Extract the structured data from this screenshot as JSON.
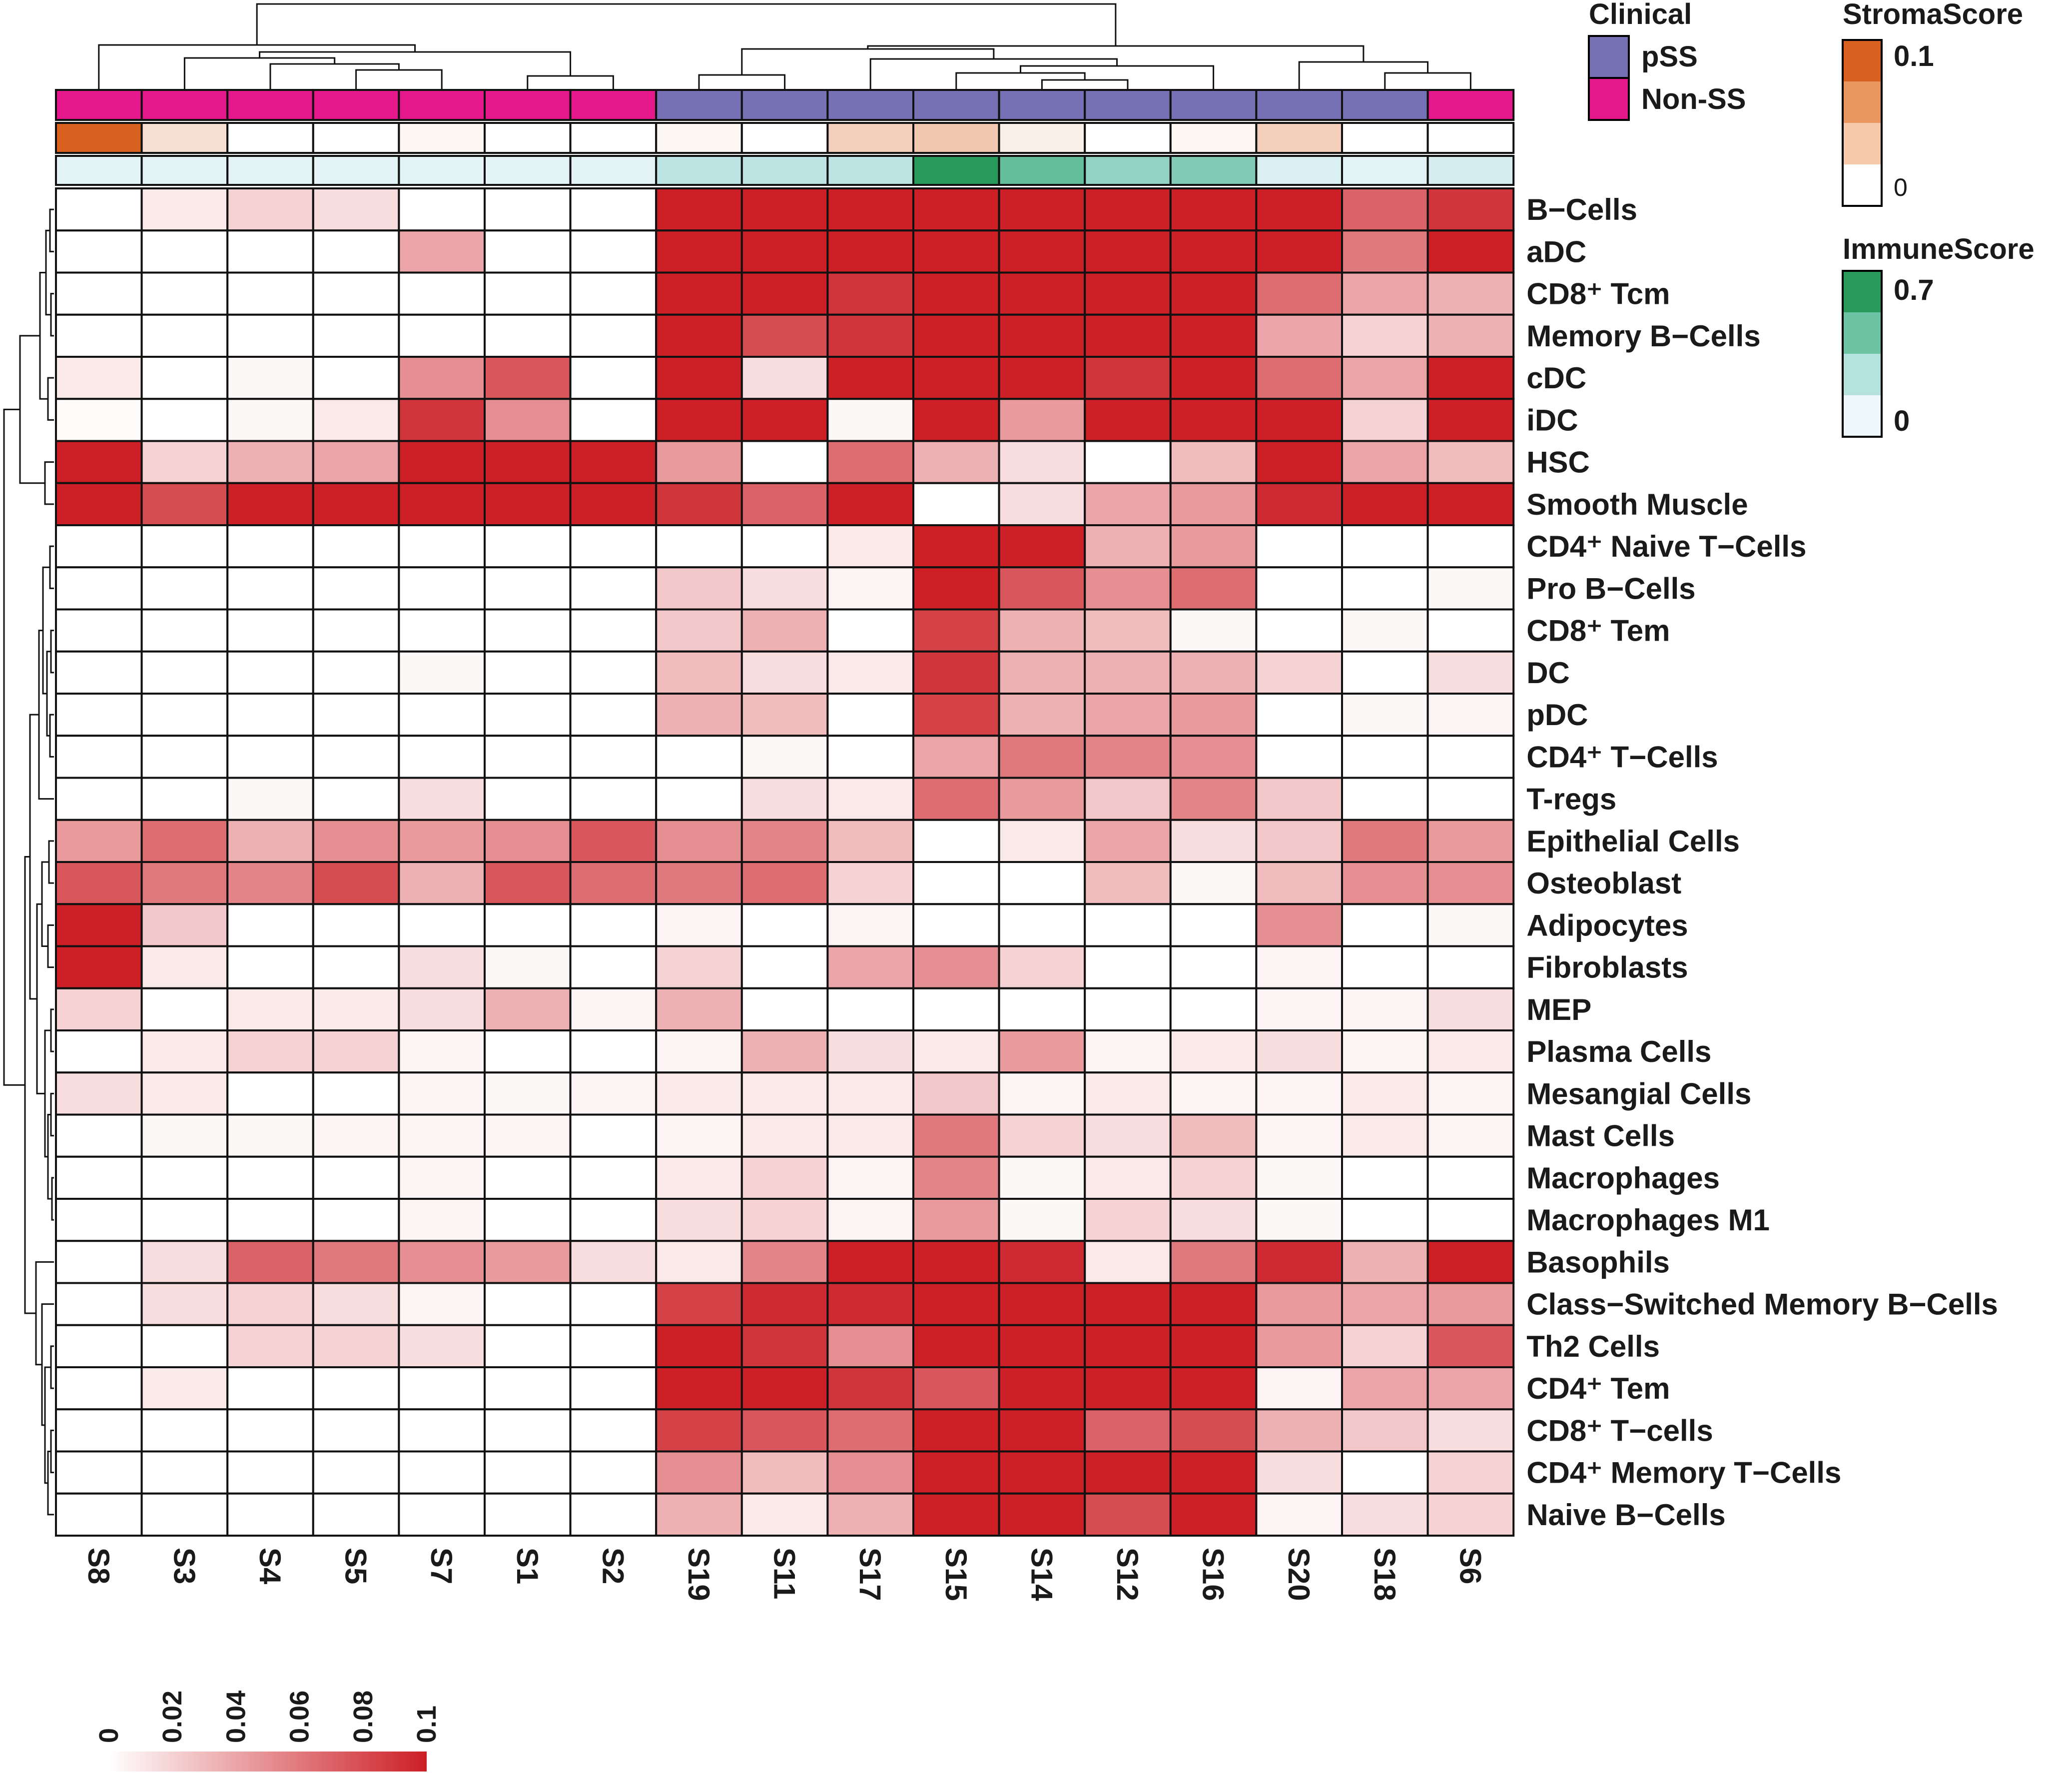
{
  "chart_data": {
    "type": "heatmap",
    "columns": [
      "S8",
      "S3",
      "S4",
      "S5",
      "S7",
      "S1",
      "S2",
      "S19",
      "S11",
      "S17",
      "S15",
      "S14",
      "S12",
      "S16",
      "S20",
      "S18",
      "S6"
    ],
    "rows": [
      "B−Cells",
      "aDC",
      "CD8⁺ Tcm",
      "Memory B−Cells",
      "cDC",
      "iDC",
      "HSC",
      "Smooth Muscle",
      "CD4⁺ Naive T−Cells",
      "Pro B−Cells",
      "CD8⁺ Tem",
      "DC",
      "pDC",
      "CD4⁺ T−Cells",
      "T-regs",
      "Epithelial Cells",
      "Osteoblast",
      "Adipocytes",
      "Fibroblasts",
      "MEP",
      "Plasma Cells",
      "Mesangial Cells",
      "Mast Cells",
      "Macrophages",
      "Macrophages M1",
      "Basophils",
      "Class−Switched Memory B−Cells",
      "Th2 Cells",
      "CD4⁺ Tem",
      "CD8⁺ T−cells",
      "CD4⁺ Memory T−Cells",
      "Naive B−Cells"
    ],
    "values": [
      [
        0.0,
        0.01,
        0.02,
        0.015,
        0.0,
        0.0,
        0.0,
        0.1,
        0.1,
        0.1,
        0.1,
        0.1,
        0.1,
        0.1,
        0.1,
        0.07,
        0.09
      ],
      [
        0.0,
        0.0,
        0.0,
        0.0,
        0.04,
        0.0,
        0.0,
        0.1,
        0.1,
        0.1,
        0.1,
        0.1,
        0.1,
        0.1,
        0.1,
        0.06,
        0.1
      ],
      [
        0.0,
        0.0,
        0.0,
        0.0,
        0.0,
        0.0,
        0.0,
        0.1,
        0.1,
        0.09,
        0.1,
        0.1,
        0.1,
        0.1,
        0.065,
        0.04,
        0.035
      ],
      [
        0.0,
        0.0,
        0.0,
        0.0,
        0.0,
        0.0,
        0.0,
        0.1,
        0.08,
        0.09,
        0.1,
        0.1,
        0.1,
        0.1,
        0.04,
        0.02,
        0.035
      ],
      [
        0.01,
        0.0,
        0.003,
        0.0,
        0.05,
        0.075,
        0.0,
        0.1,
        0.015,
        0.1,
        0.1,
        0.1,
        0.09,
        0.1,
        0.065,
        0.04,
        0.1
      ],
      [
        0.002,
        0.0,
        0.003,
        0.01,
        0.09,
        0.05,
        0.0,
        0.1,
        0.1,
        0.003,
        0.1,
        0.045,
        0.1,
        0.1,
        0.1,
        0.02,
        0.1
      ],
      [
        0.1,
        0.02,
        0.035,
        0.04,
        0.1,
        0.1,
        0.1,
        0.045,
        0.0,
        0.065,
        0.035,
        0.015,
        0.0,
        0.03,
        0.1,
        0.04,
        0.03
      ],
      [
        0.1,
        0.08,
        0.1,
        0.1,
        0.1,
        0.1,
        0.1,
        0.09,
        0.07,
        0.1,
        0.0,
        0.015,
        0.04,
        0.045,
        0.095,
        0.1,
        0.1
      ],
      [
        0.0,
        0.0,
        0.0,
        0.0,
        0.0,
        0.0,
        0.0,
        0.0,
        0.0,
        0.01,
        0.1,
        0.1,
        0.035,
        0.045,
        0.0,
        0.0,
        0.0
      ],
      [
        0.0,
        0.0,
        0.0,
        0.0,
        0.0,
        0.0,
        0.0,
        0.025,
        0.015,
        0.005,
        0.1,
        0.075,
        0.05,
        0.065,
        0.0,
        0.0,
        0.003
      ],
      [
        0.0,
        0.0,
        0.0,
        0.0,
        0.0,
        0.0,
        0.0,
        0.025,
        0.035,
        0.0,
        0.085,
        0.035,
        0.03,
        0.003,
        0.0,
        0.003,
        0.0
      ],
      [
        0.0,
        0.0,
        0.0,
        0.0,
        0.003,
        0.0,
        0.0,
        0.03,
        0.015,
        0.01,
        0.09,
        0.035,
        0.035,
        0.035,
        0.02,
        0.0,
        0.015
      ],
      [
        0.0,
        0.0,
        0.0,
        0.0,
        0.0,
        0.0,
        0.0,
        0.035,
        0.03,
        0.0,
        0.085,
        0.035,
        0.04,
        0.045,
        0.0,
        0.003,
        0.005
      ],
      [
        0.0,
        0.0,
        0.0,
        0.0,
        0.0,
        0.0,
        0.0,
        0.0,
        0.003,
        0.0,
        0.04,
        0.06,
        0.055,
        0.05,
        0.0,
        0.0,
        0.0
      ],
      [
        0.0,
        0.0,
        0.003,
        0.0,
        0.015,
        0.0,
        0.0,
        0.0,
        0.015,
        0.01,
        0.065,
        0.045,
        0.025,
        0.055,
        0.025,
        0.0,
        0.0
      ],
      [
        0.045,
        0.065,
        0.035,
        0.05,
        0.045,
        0.05,
        0.075,
        0.05,
        0.055,
        0.03,
        0.0,
        0.01,
        0.04,
        0.015,
        0.025,
        0.06,
        0.045
      ],
      [
        0.075,
        0.06,
        0.055,
        0.08,
        0.035,
        0.075,
        0.065,
        0.06,
        0.065,
        0.02,
        0.0,
        0.0,
        0.03,
        0.003,
        0.03,
        0.05,
        0.05
      ],
      [
        0.1,
        0.025,
        0.0,
        0.0,
        0.0,
        0.0,
        0.0,
        0.005,
        0.0,
        0.005,
        0.0,
        0.0,
        0.0,
        0.0,
        0.05,
        0.0,
        0.003
      ],
      [
        0.1,
        0.01,
        0.0,
        0.0,
        0.015,
        0.003,
        0.0,
        0.02,
        0.0,
        0.04,
        0.05,
        0.02,
        0.0,
        0.0,
        0.005,
        0.0,
        0.0
      ],
      [
        0.02,
        0.0,
        0.01,
        0.01,
        0.015,
        0.035,
        0.005,
        0.035,
        0.0,
        0.0,
        0.0,
        0.0,
        0.0,
        0.0,
        0.005,
        0.005,
        0.015
      ],
      [
        0.0,
        0.01,
        0.02,
        0.02,
        0.005,
        0.0,
        0.0,
        0.005,
        0.035,
        0.015,
        0.01,
        0.045,
        0.005,
        0.01,
        0.015,
        0.005,
        0.01
      ],
      [
        0.015,
        0.01,
        0.0,
        0.0,
        0.005,
        0.003,
        0.005,
        0.01,
        0.01,
        0.01,
        0.025,
        0.005,
        0.01,
        0.005,
        0.005,
        0.01,
        0.005
      ],
      [
        0.0,
        0.003,
        0.003,
        0.005,
        0.005,
        0.005,
        0.0,
        0.005,
        0.01,
        0.01,
        0.06,
        0.02,
        0.015,
        0.03,
        0.005,
        0.01,
        0.005
      ],
      [
        0.0,
        0.0,
        0.0,
        0.0,
        0.005,
        0.0,
        0.0,
        0.01,
        0.02,
        0.005,
        0.055,
        0.003,
        0.01,
        0.02,
        0.003,
        0.0,
        0.0
      ],
      [
        0.0,
        0.0,
        0.0,
        0.0,
        0.005,
        0.0,
        0.0,
        0.015,
        0.02,
        0.005,
        0.045,
        0.003,
        0.02,
        0.015,
        0.003,
        0.0,
        0.0
      ],
      [
        0.0,
        0.015,
        0.07,
        0.06,
        0.05,
        0.045,
        0.015,
        0.01,
        0.055,
        0.1,
        0.1,
        0.095,
        0.01,
        0.06,
        0.095,
        0.035,
        0.1
      ],
      [
        0.0,
        0.015,
        0.02,
        0.015,
        0.005,
        0.0,
        0.0,
        0.085,
        0.095,
        0.095,
        0.1,
        0.1,
        0.1,
        0.1,
        0.045,
        0.04,
        0.045
      ],
      [
        0.0,
        0.0,
        0.02,
        0.02,
        0.015,
        0.0,
        0.0,
        0.1,
        0.09,
        0.05,
        0.1,
        0.1,
        0.1,
        0.1,
        0.045,
        0.02,
        0.075
      ],
      [
        0.0,
        0.01,
        0.0,
        0.0,
        0.0,
        0.0,
        0.0,
        0.1,
        0.1,
        0.09,
        0.075,
        0.1,
        0.1,
        0.1,
        0.005,
        0.04,
        0.04
      ],
      [
        0.0,
        0.0,
        0.0,
        0.0,
        0.0,
        0.0,
        0.0,
        0.085,
        0.075,
        0.065,
        0.1,
        0.1,
        0.07,
        0.08,
        0.035,
        0.025,
        0.015
      ],
      [
        0.0,
        0.0,
        0.0,
        0.0,
        0.0,
        0.0,
        0.0,
        0.05,
        0.03,
        0.05,
        0.1,
        0.1,
        0.1,
        0.1,
        0.015,
        0.0,
        0.02
      ],
      [
        0.0,
        0.0,
        0.0,
        0.0,
        0.0,
        0.0,
        0.0,
        0.035,
        0.01,
        0.035,
        0.1,
        0.1,
        0.08,
        0.1,
        0.005,
        0.015,
        0.02
      ]
    ],
    "annotations": {
      "clinical": [
        "Non-SS",
        "Non-SS",
        "Non-SS",
        "Non-SS",
        "Non-SS",
        "Non-SS",
        "Non-SS",
        "pSS",
        "pSS",
        "pSS",
        "pSS",
        "pSS",
        "pSS",
        "pSS",
        "pSS",
        "pSS",
        "Non-SS"
      ],
      "stroma_score": [
        0.1,
        0.02,
        0.0,
        0.0,
        0.005,
        0.0,
        0.0,
        0.005,
        0.0,
        0.03,
        0.035,
        0.01,
        0.0,
        0.005,
        0.03,
        0.0,
        0.0
      ],
      "immune_score": [
        0.05,
        0.05,
        0.05,
        0.05,
        0.05,
        0.05,
        0.05,
        0.2,
        0.2,
        0.2,
        0.7,
        0.5,
        0.35,
        0.4,
        0.08,
        0.05,
        0.1
      ]
    },
    "colorbar": {
      "min": 0,
      "max": 0.1,
      "ticks": [
        "0",
        "0.02",
        "0.04",
        "0.06",
        "0.08",
        "0.1"
      ],
      "low_color": "#ffffff",
      "high_color": "#cc1f26"
    },
    "legend": {
      "clinical": {
        "title": "Clinical",
        "entries": [
          {
            "label": "pSS",
            "color": "#7670b5"
          },
          {
            "label": "Non-SS",
            "color": "#e5188b"
          }
        ]
      },
      "stroma": {
        "title": "StromaScore",
        "max_label": "0.1",
        "min_label": "0",
        "colors": [
          "#d9611f",
          "#e9965f",
          "#f5c9aa",
          "#ffffff"
        ]
      },
      "immune": {
        "title": "ImmuneScore",
        "max_label": "0.7",
        "min_label": "0",
        "colors": [
          "#2a9a5c",
          "#6ec3a5",
          "#b5e1df",
          "#eef7fb"
        ]
      }
    },
    "dendrogram": {
      "columns": {
        "root": [
          "S8|S3|S4|S5|S7|S1|S2",
          "S19|S11|S17|S15|S14|S12|S16|S20|S18|S6"
        ]
      },
      "rows": "hierarchical clustering of cell types"
    }
  }
}
